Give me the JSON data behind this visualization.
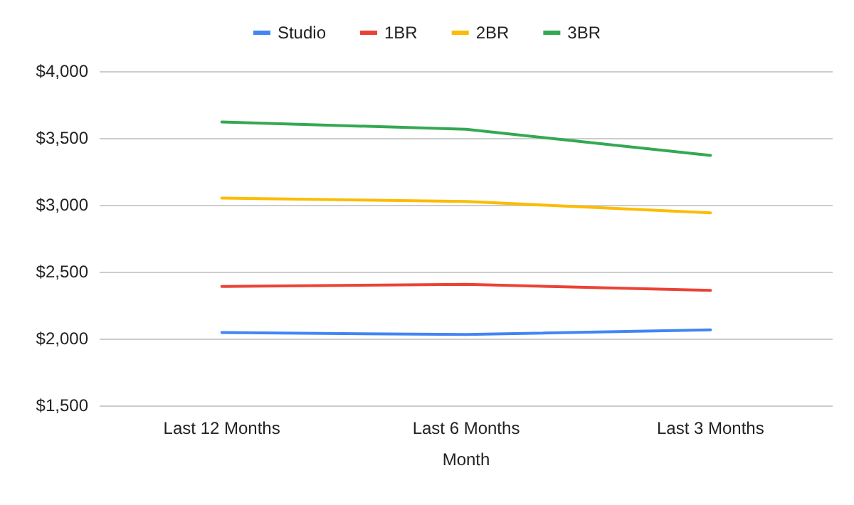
{
  "chart_data": {
    "type": "line",
    "xlabel": "Month",
    "categories": [
      "Last 12 Months",
      "Last 6 Months",
      "Last 3 Months"
    ],
    "series": [
      {
        "name": "Studio",
        "color": "#4285f4",
        "values": [
          2045,
          2030,
          2065
        ]
      },
      {
        "name": "1BR",
        "color": "#ea4335",
        "values": [
          2390,
          2405,
          2360
        ]
      },
      {
        "name": "2BR",
        "color": "#fbbc04",
        "values": [
          3050,
          3025,
          2940
        ]
      },
      {
        "name": "3BR",
        "color": "#34a853",
        "values": [
          3620,
          3565,
          3370
        ]
      }
    ],
    "ylim": [
      1500,
      4000
    ],
    "yticks": [
      {
        "value": 1500,
        "label": "$1,500"
      },
      {
        "value": 2000,
        "label": "$2,000"
      },
      {
        "value": 2500,
        "label": "$2,500"
      },
      {
        "value": 3000,
        "label": "$3,000"
      },
      {
        "value": 3500,
        "label": "$3,500"
      },
      {
        "value": 4000,
        "label": "$4,000"
      }
    ],
    "grid": "y",
    "legend": "top",
    "marker": "none",
    "line_style": "solid"
  }
}
